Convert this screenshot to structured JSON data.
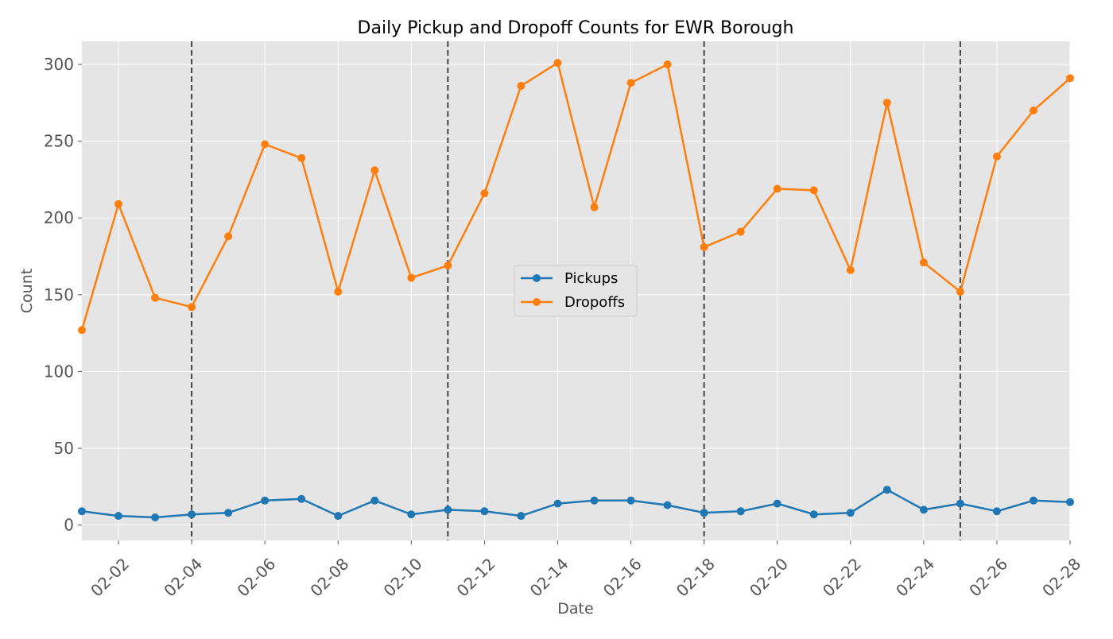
{
  "chart_data": {
    "type": "line",
    "title": "Daily Pickup and Dropoff Counts for EWR Borough",
    "xlabel": "Date",
    "ylabel": "Count",
    "x": [
      "02-01",
      "02-02",
      "02-03",
      "02-04",
      "02-05",
      "02-06",
      "02-07",
      "02-08",
      "02-09",
      "02-10",
      "02-11",
      "02-12",
      "02-13",
      "02-14",
      "02-15",
      "02-16",
      "02-17",
      "02-18",
      "02-19",
      "02-20",
      "02-21",
      "02-22",
      "02-23",
      "02-24",
      "02-25",
      "02-26",
      "02-27",
      "02-28"
    ],
    "xticks": [
      "02-02",
      "02-04",
      "02-06",
      "02-08",
      "02-10",
      "02-12",
      "02-14",
      "02-16",
      "02-18",
      "02-20",
      "02-22",
      "02-24",
      "02-26",
      "02-28"
    ],
    "ylim": [
      -10,
      315
    ],
    "yticks": [
      0,
      50,
      100,
      150,
      200,
      250,
      300
    ],
    "vlines": [
      "02-04",
      "02-11",
      "02-18",
      "02-25"
    ],
    "grid": true,
    "legend_position": "center",
    "series": [
      {
        "name": "Pickups",
        "color": "#1f77b4",
        "values": [
          9,
          6,
          5,
          7,
          8,
          16,
          17,
          6,
          16,
          7,
          10,
          9,
          6,
          14,
          16,
          16,
          13,
          8,
          9,
          14,
          7,
          8,
          23,
          10,
          14,
          9,
          16,
          15
        ]
      },
      {
        "name": "Dropoffs",
        "color": "#ff7f0e",
        "values": [
          127,
          209,
          148,
          142,
          188,
          248,
          239,
          152,
          231,
          161,
          169,
          216,
          286,
          301,
          207,
          288,
          300,
          181,
          191,
          219,
          218,
          166,
          275,
          171,
          152,
          240,
          270,
          291
        ]
      }
    ]
  }
}
